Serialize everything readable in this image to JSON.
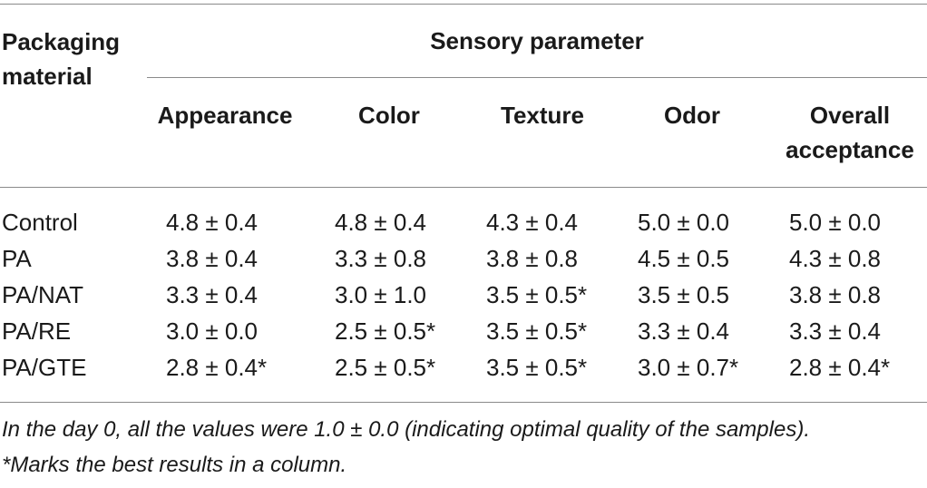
{
  "table": {
    "stub_header": "Packaging material",
    "group_header": "Sensory parameter",
    "columns": [
      "Appearance",
      "Color",
      "Texture",
      "Odor",
      "Overall acceptance"
    ],
    "rows": [
      {
        "label": "Control",
        "values": [
          "4.8 ± 0.4",
          "4.8 ± 0.4",
          "4.3 ± 0.4",
          "5.0 ± 0.0",
          "5.0 ± 0.0"
        ]
      },
      {
        "label": "PA",
        "values": [
          "3.8 ± 0.4",
          "3.3 ± 0.8",
          "3.8 ± 0.8",
          "4.5 ± 0.5",
          "4.3 ± 0.8"
        ]
      },
      {
        "label": "PA/NAT",
        "values": [
          "3.3 ± 0.4",
          "3.0 ± 1.0",
          "3.5 ± 0.5*",
          "3.5 ± 0.5",
          "3.8 ± 0.8"
        ]
      },
      {
        "label": "PA/RE",
        "values": [
          "3.0 ± 0.0",
          "2.5 ± 0.5*",
          "3.5 ± 0.5*",
          "3.3 ± 0.4",
          "3.3 ± 0.4"
        ]
      },
      {
        "label": "PA/GTE",
        "values": [
          "2.8 ± 0.4*",
          "2.5 ± 0.5*",
          "3.5 ± 0.5*",
          "3.0 ± 0.7*",
          "2.8 ± 0.4*"
        ]
      }
    ]
  },
  "footnotes": {
    "line1": "In the day 0, all the values were 1.0 ± 0.0 (indicating optimal quality of the samples).",
    "line2": "*Marks the best results in a column."
  }
}
